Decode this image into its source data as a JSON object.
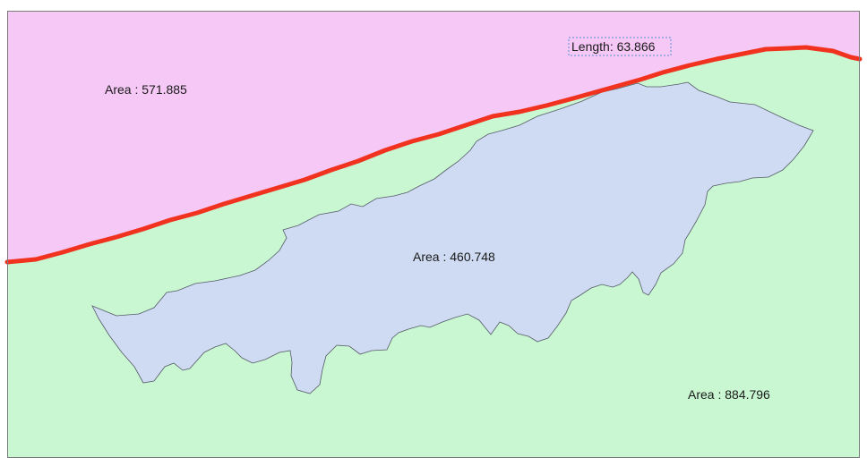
{
  "map": {
    "colors": {
      "upper_region_fill": "#f5c8f5",
      "lower_region_fill": "#c8f7d2",
      "inner_polygon_fill": "#cfdbf2",
      "inner_polygon_stroke": "#555a66",
      "boundary_line": "#f0321e",
      "frame_stroke": "#7a7a7a",
      "selection_box": "#5c8fd6"
    },
    "labels": {
      "upper_area": "Area : 571.885",
      "inner_area": "Area : 460.748",
      "lower_area": "Area : 884.796",
      "line_length": "Length: 63.866"
    }
  }
}
